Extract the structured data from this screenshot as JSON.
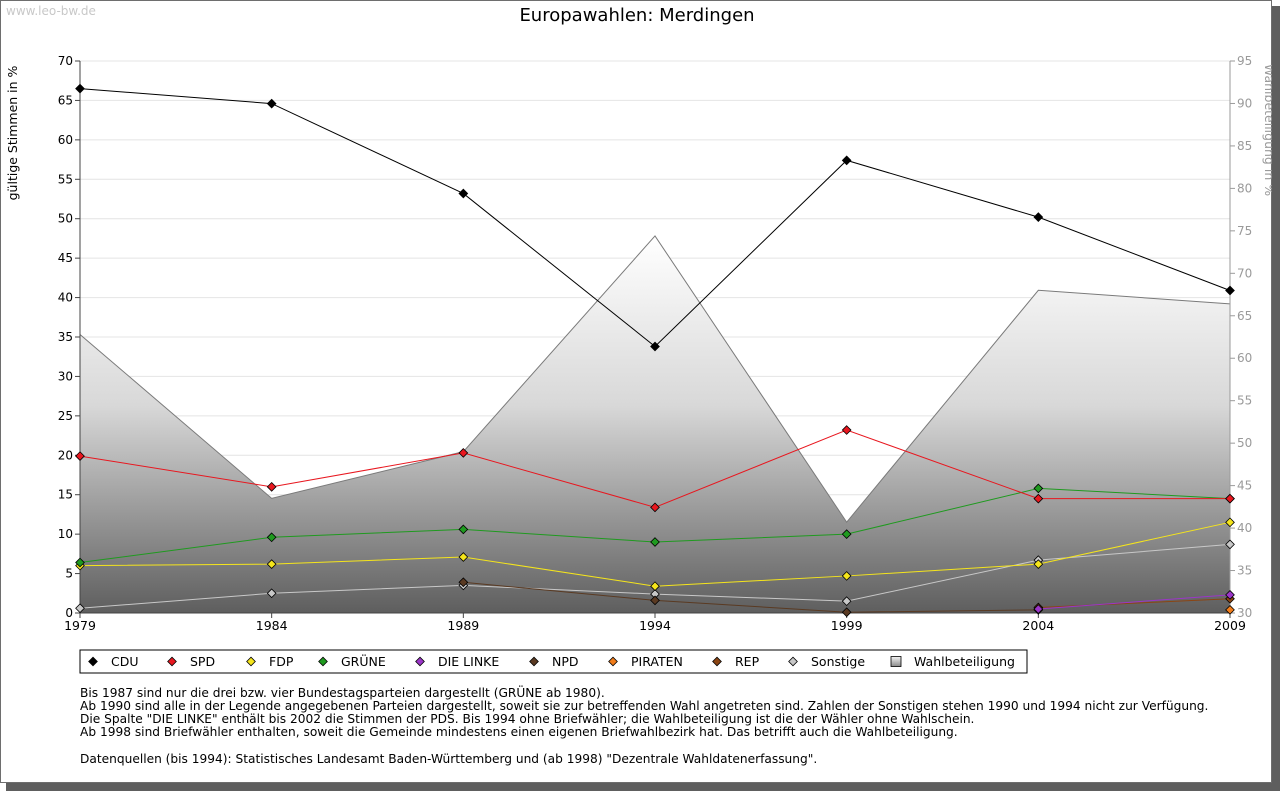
{
  "watermark": "www.leo-bw.de",
  "chart_data": {
    "type": "line",
    "title": "Europawahlen: Merdingen",
    "ylabel": "gültige Stimmen in %",
    "y2label": "Wahlbeteiligung in %",
    "ylim": [
      0,
      70
    ],
    "y2lim": [
      30,
      95
    ],
    "yticks": [
      "0",
      "5",
      "10",
      "15",
      "20",
      "25",
      "30",
      "35",
      "40",
      "45",
      "50",
      "55",
      "60",
      "65",
      "70"
    ],
    "y2ticks": [
      "30",
      "35",
      "40",
      "45",
      "50",
      "55",
      "60",
      "65",
      "70",
      "75",
      "80",
      "85",
      "90",
      "95"
    ],
    "categories": [
      "1979",
      "1984",
      "1989",
      "1994",
      "1999",
      "2004",
      "2009"
    ],
    "series": [
      {
        "name": "CDU",
        "color": "#000000",
        "values": [
          66.5,
          64.6,
          53.2,
          33.8,
          57.4,
          50.2,
          40.9
        ]
      },
      {
        "name": "SPD",
        "color": "#e8171f",
        "values": [
          19.9,
          16.0,
          20.3,
          13.4,
          23.2,
          14.5,
          14.5
        ]
      },
      {
        "name": "FDP",
        "color": "#f5e51c",
        "values": [
          6.0,
          6.2,
          7.1,
          3.4,
          4.7,
          6.2,
          11.5
        ]
      },
      {
        "name": "GRÜNE",
        "color": "#1f9a1f",
        "values": [
          6.4,
          9.6,
          10.6,
          9.0,
          10.0,
          15.8,
          14.5
        ]
      },
      {
        "name": "DIE LINKE",
        "color": "#9b36c8",
        "values": [
          null,
          null,
          null,
          null,
          null,
          0.5,
          2.3
        ]
      },
      {
        "name": "NPD",
        "color": "#5a3a22",
        "values": [
          null,
          null,
          3.9,
          1.6,
          0.1,
          0.4,
          null
        ]
      },
      {
        "name": "PIRATEN",
        "color": "#f07c1a",
        "values": [
          null,
          null,
          null,
          null,
          null,
          null,
          0.4
        ]
      },
      {
        "name": "REP",
        "color": "#8b4513",
        "values": [
          null,
          null,
          null,
          null,
          null,
          0.7,
          1.8
        ]
      },
      {
        "name": "Sonstige",
        "color": "#c8c8c8",
        "values": [
          0.6,
          2.5,
          3.5,
          2.4,
          1.5,
          6.7,
          8.7
        ]
      }
    ],
    "turnout": {
      "name": "Wahlbeteiligung",
      "values": [
        62.8,
        43.5,
        49.0,
        74.4,
        40.7,
        68.0,
        66.4
      ]
    },
    "legend": [
      "CDU",
      "SPD",
      "FDP",
      "GRÜNE",
      "DIE LINKE",
      "NPD",
      "PIRATEN",
      "REP",
      "Sonstige",
      "Wahlbeteiligung"
    ]
  },
  "notes": [
    "Bis 1987 sind nur die drei bzw. vier Bundestagsparteien dargestellt (GRÜNE ab 1980).",
    "Ab 1990 sind alle in der Legende angegebenen Parteien dargestellt, soweit sie zur betreffenden Wahl angetreten sind. Zahlen der Sonstigen stehen 1990 und 1994 nicht zur Verfügung.",
    "Die Spalte \"DIE LINKE\" enthält bis 2002 die Stimmen der PDS. Bis 1994 ohne Briefwähler; die Wahlbeteiligung ist die der Wähler ohne Wahlschein.",
    "Ab 1998 sind Briefwähler enthalten, soweit die Gemeinde mindestens einen eigenen Briefwahlbezirk hat. Das betrifft auch die Wahlbeteiligung."
  ],
  "source": "Datenquellen (bis 1994): Statistisches Landesamt Baden-Württemberg und (ab 1998) \"Dezentrale Wahldatenerfassung\"."
}
